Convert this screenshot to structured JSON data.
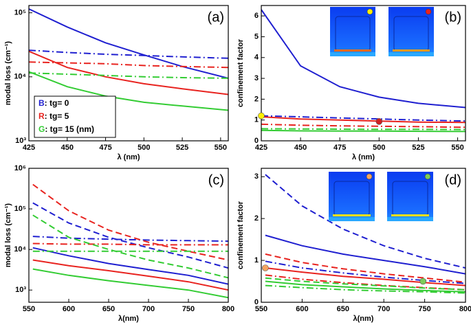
{
  "chart_data": [
    {
      "type": "line",
      "panel_label": "(a)",
      "ylabel": "modal loss (cm⁻¹)",
      "xlabel": "λ (nm)",
      "yscale": "log",
      "x": [
        425,
        450,
        475,
        500,
        525,
        555
      ],
      "xlim": [
        425,
        555
      ],
      "xticks": [
        425,
        450,
        475,
        500,
        525,
        550
      ],
      "ylim": [
        1000,
        130000
      ],
      "yticks": [
        {
          "value": 1000,
          "label": "10³"
        },
        {
          "value": 10000,
          "label": "10⁴"
        },
        {
          "value": 100000,
          "label": "10⁵"
        }
      ],
      "series": [
        {
          "color": "#1f1fd0",
          "style": "solid",
          "values": [
            115000,
            60000,
            34000,
            22000,
            14500,
            9500
          ]
        },
        {
          "color": "#1f1fd0",
          "style": "dashdot",
          "values": [
            26000,
            24000,
            22500,
            21500,
            20500,
            19500
          ]
        },
        {
          "color": "#e8231f",
          "style": "solid",
          "values": [
            25000,
            14000,
            10000,
            7800,
            6500,
            5300
          ]
        },
        {
          "color": "#e8231f",
          "style": "dashdot",
          "values": [
            17000,
            16500,
            16000,
            15000,
            14500,
            14000
          ]
        },
        {
          "color": "#33cc33",
          "style": "solid",
          "values": [
            12000,
            7000,
            5000,
            4000,
            3500,
            3000
          ]
        },
        {
          "color": "#33cc33",
          "style": "dashdot",
          "values": [
            11500,
            11000,
            10500,
            10000,
            9700,
            9500
          ]
        }
      ],
      "legend": [
        {
          "key": "B",
          "color": "#1f1fd0",
          "text": ": tg= 0"
        },
        {
          "key": "R",
          "color": "#e8231f",
          "text": ": tg= 5"
        },
        {
          "key": "G",
          "color": "#33cc33",
          "text": ": tg= 15 (nm)"
        }
      ]
    },
    {
      "type": "line",
      "panel_label": "(b)",
      "ylabel": "confinement factor",
      "xlabel": "λ (nm)",
      "yscale": "linear",
      "x": [
        425,
        450,
        475,
        500,
        525,
        555
      ],
      "xlim": [
        425,
        555
      ],
      "xticks": [
        425,
        450,
        475,
        500,
        525,
        550
      ],
      "ylim": [
        0,
        6.5
      ],
      "yticks": [
        0,
        1,
        2,
        3,
        4,
        5,
        6
      ],
      "series": [
        {
          "color": "#1f1fd0",
          "style": "solid",
          "values": [
            6.3,
            3.6,
            2.6,
            2.1,
            1.8,
            1.6
          ]
        },
        {
          "color": "#1f1fd0",
          "style": "dashdot",
          "values": [
            1.2,
            1.15,
            1.1,
            1.05,
            1.0,
            0.95
          ]
        },
        {
          "color": "#e8231f",
          "style": "solid",
          "values": [
            1.15,
            1.05,
            1.0,
            0.95,
            0.9,
            0.88
          ]
        },
        {
          "color": "#e8231f",
          "style": "dashdot",
          "values": [
            0.8,
            0.75,
            0.72,
            0.7,
            0.68,
            0.65
          ]
        },
        {
          "color": "#33cc33",
          "style": "solid",
          "values": [
            0.5,
            0.48,
            0.47,
            0.47,
            0.46,
            0.45
          ]
        },
        {
          "color": "#33cc33",
          "style": "dashdot",
          "values": [
            0.58,
            0.57,
            0.56,
            0.55,
            0.55,
            0.54
          ]
        }
      ]
    },
    {
      "type": "line",
      "panel_label": "(c)",
      "ylabel": "modal loss (cm⁻¹)",
      "xlabel": "λ(nm)",
      "yscale": "log",
      "x": [
        555,
        600,
        650,
        700,
        750,
        800
      ],
      "xlim": [
        550,
        800
      ],
      "xticks": [
        550,
        600,
        650,
        700,
        750,
        800
      ],
      "ylim": [
        500,
        1000000
      ],
      "yticks": [
        {
          "value": 1000,
          "label": "10³"
        },
        {
          "value": 10000,
          "label": "10⁴"
        },
        {
          "value": 100000,
          "label": "10⁵"
        },
        {
          "value": 1000000,
          "label": "10⁶"
        }
      ],
      "series": [
        {
          "color": "#1f1fd0",
          "style": "solid",
          "values": [
            11000,
            7000,
            4500,
            3200,
            2300,
            1400
          ]
        },
        {
          "color": "#1f1fd0",
          "style": "dash",
          "values": [
            140000,
            45000,
            20000,
            11000,
            6500,
            3500
          ]
        },
        {
          "color": "#1f1fd0",
          "style": "dashdot",
          "values": [
            21000,
            19000,
            18000,
            17000,
            16500,
            16000
          ]
        },
        {
          "color": "#e8231f",
          "style": "solid",
          "values": [
            5500,
            4000,
            3000,
            2200,
            1600,
            1000
          ]
        },
        {
          "color": "#e8231f",
          "style": "dash",
          "values": [
            400000,
            90000,
            30000,
            15000,
            9000,
            5500
          ]
        },
        {
          "color": "#e8231f",
          "style": "dashdot",
          "values": [
            14000,
            13500,
            13500,
            13000,
            13000,
            13000
          ]
        },
        {
          "color": "#33cc33",
          "style": "solid",
          "values": [
            3300,
            2300,
            1700,
            1300,
            1000,
            650
          ]
        },
        {
          "color": "#33cc33",
          "style": "dash",
          "values": [
            70000,
            20000,
            10000,
            5500,
            3500,
            2000
          ]
        },
        {
          "color": "#33cc33",
          "style": "dashdot",
          "values": [
            9000,
            9000,
            9000,
            9000,
            9000,
            9000
          ]
        }
      ]
    },
    {
      "type": "line",
      "panel_label": "(d)",
      "ylabel": "confinement factor",
      "xlabel": "λ(nm)",
      "yscale": "linear",
      "x": [
        555,
        600,
        650,
        700,
        750,
        800
      ],
      "xlim": [
        550,
        800
      ],
      "xticks": [
        550,
        600,
        650,
        700,
        750,
        800
      ],
      "ylim": [
        0,
        3.2
      ],
      "yticks": [
        0,
        1,
        2,
        3
      ],
      "series": [
        {
          "color": "#1f1fd0",
          "style": "solid",
          "values": [
            1.6,
            1.35,
            1.15,
            1.0,
            0.85,
            0.68
          ]
        },
        {
          "color": "#1f1fd0",
          "style": "dash",
          "values": [
            3.05,
            2.3,
            1.75,
            1.35,
            1.05,
            0.82
          ]
        },
        {
          "color": "#1f1fd0",
          "style": "dashdot",
          "values": [
            0.98,
            0.82,
            0.7,
            0.6,
            0.52,
            0.45
          ]
        },
        {
          "color": "#e8231f",
          "style": "solid",
          "values": [
            0.82,
            0.72,
            0.62,
            0.55,
            0.47,
            0.4
          ]
        },
        {
          "color": "#e8231f",
          "style": "dash",
          "values": [
            1.15,
            0.95,
            0.8,
            0.68,
            0.58,
            0.48
          ]
        },
        {
          "color": "#e8231f",
          "style": "dashdot",
          "values": [
            0.65,
            0.55,
            0.47,
            0.4,
            0.35,
            0.3
          ]
        },
        {
          "color": "#33cc33",
          "style": "solid",
          "values": [
            0.5,
            0.42,
            0.37,
            0.32,
            0.28,
            0.25
          ]
        },
        {
          "color": "#33cc33",
          "style": "dash",
          "values": [
            0.58,
            0.5,
            0.44,
            0.39,
            0.34,
            0.3
          ]
        },
        {
          "color": "#33cc33",
          "style": "dashdot",
          "values": [
            0.4,
            0.35,
            0.3,
            0.27,
            0.25,
            0.22
          ]
        }
      ]
    }
  ]
}
